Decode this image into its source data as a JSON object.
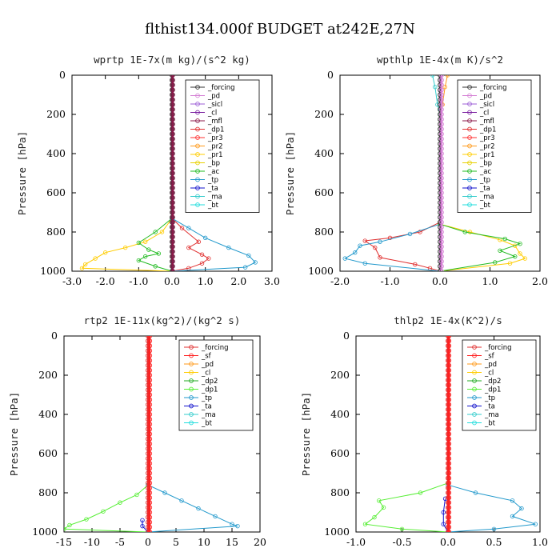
{
  "title": "flthist134.000f  BUDGET at242E,27N",
  "colors": {
    "forcing": "#333333",
    "pd": "#d580d5",
    "sicl": "#9c5ed6",
    "cl": "#7a1fa0",
    "mfl": "#8b1a4a",
    "dp1": "#e03030",
    "pr3": "#ff3030",
    "pr2": "#ff9a1a",
    "pr1": "#ffcc00",
    "bp": "#e8d000",
    "ac": "#22bb22",
    "tp": "#2299cc",
    "ta": "#1111cc",
    "ma": "#33cccc",
    "bt": "#22dddd",
    "sf": "#ff2020",
    "dp2": "#22aa22",
    "dp1g": "#55ee33"
  },
  "chart_data": [
    {
      "type": "line",
      "title": "wprtp  1E-7x(m kg)/(s^2 kg)",
      "ylabel": "Pressure [hPa]",
      "xlim": [
        -3.0,
        3.0
      ],
      "ylim": [
        1000,
        0
      ],
      "xticks": [
        "-3.0",
        "-2.0",
        "-1.0",
        "0.0",
        "1.0",
        "2.0",
        "3.0"
      ],
      "xtick_values": [
        -3,
        -2,
        -1,
        0,
        1,
        2,
        3
      ],
      "yticks": [
        "0",
        "200",
        "400",
        "600",
        "800",
        "1000"
      ],
      "ytick_values": [
        0,
        200,
        400,
        600,
        800,
        1000
      ],
      "legend": [
        "_forcing",
        "_pd",
        "_sicl",
        "_cl",
        "_mfl",
        "_dp1",
        "_pr3",
        "_pr2",
        "_pr1",
        "_bp",
        "_ac",
        "_tp",
        "_ta",
        "_ma",
        "_bt"
      ],
      "legend_colors": [
        "forcing",
        "pd",
        "sicl",
        "cl",
        "mfl",
        "dp1",
        "pr3",
        "pr2",
        "pr1",
        "bp",
        "ac",
        "tp",
        "ta",
        "ma",
        "bt"
      ],
      "series": [
        {
          "color": "pr1",
          "points": [
            [
              0,
              730
            ],
            [
              -0.3,
              800
            ],
            [
              -0.8,
              850
            ],
            [
              -1.4,
              880
            ],
            [
              -2.0,
              905
            ],
            [
              -2.3,
              935
            ],
            [
              -2.6,
              965
            ],
            [
              -2.7,
              985
            ],
            [
              0,
              1000
            ]
          ]
        },
        {
          "color": "ac",
          "points": [
            [
              0,
              730
            ],
            [
              -0.5,
              800
            ],
            [
              -1.0,
              855
            ],
            [
              -0.7,
              890
            ],
            [
              -0.4,
              910
            ],
            [
              -0.8,
              925
            ],
            [
              -1.0,
              945
            ],
            [
              -0.5,
              975
            ],
            [
              0,
              1000
            ]
          ]
        },
        {
          "color": "dp1",
          "points": [
            [
              0,
              730
            ],
            [
              0.3,
              780
            ],
            [
              0.8,
              850
            ],
            [
              0.5,
              880
            ],
            [
              0.9,
              915
            ],
            [
              1.1,
              935
            ],
            [
              0.9,
              960
            ],
            [
              0.5,
              985
            ],
            [
              0,
              1000
            ]
          ]
        },
        {
          "color": "tp",
          "points": [
            [
              0,
              730
            ],
            [
              0.5,
              780
            ],
            [
              1.0,
              830
            ],
            [
              1.7,
              880
            ],
            [
              2.3,
              920
            ],
            [
              2.5,
              955
            ],
            [
              2.2,
              980
            ],
            [
              0,
              1000
            ]
          ]
        },
        {
          "color": "forcing",
          "points": [
            [
              0,
              0
            ],
            [
              0,
              1000
            ]
          ]
        },
        {
          "color": "mfl",
          "points": [
            [
              0.02,
              0
            ],
            [
              0.02,
              1000
            ]
          ]
        }
      ]
    },
    {
      "type": "line",
      "title": "wpthlp  1E-4x(m K)/s^2",
      "ylabel": "Pressure [hPa]",
      "xlim": [
        -2.0,
        2.0
      ],
      "ylim": [
        1000,
        0
      ],
      "xticks": [
        "-2.0",
        "-1.0",
        "0.0",
        "1.0",
        "2.0"
      ],
      "xtick_values": [
        -2,
        -1,
        0,
        1,
        2
      ],
      "yticks": [
        "0",
        "200",
        "400",
        "600",
        "800",
        "1000"
      ],
      "ytick_values": [
        0,
        200,
        400,
        600,
        800,
        1000
      ],
      "legend": [
        "_forcing",
        "_pd",
        "_sicl",
        "_cl",
        "_mfl",
        "_dp1",
        "_pr3",
        "_pr2",
        "_pr1",
        "_bp",
        "_ac",
        "_tp",
        "_ta",
        "_ma",
        "_bt"
      ],
      "legend_colors": [
        "forcing",
        "pd",
        "sicl",
        "cl",
        "mfl",
        "dp1",
        "pr3",
        "pr2",
        "pr1",
        "bp",
        "ac",
        "tp",
        "ta",
        "ma",
        "bt"
      ],
      "series": [
        {
          "color": "dp1",
          "points": [
            [
              0,
              750
            ],
            [
              -0.4,
              800
            ],
            [
              -1.0,
              830
            ],
            [
              -1.5,
              845
            ],
            [
              -1.3,
              880
            ],
            [
              -1.2,
              930
            ],
            [
              -0.5,
              965
            ],
            [
              -0.2,
              985
            ],
            [
              0,
              1000
            ]
          ]
        },
        {
          "color": "tp",
          "points": [
            [
              0,
              760
            ],
            [
              -0.6,
              810
            ],
            [
              -1.2,
              850
            ],
            [
              -1.6,
              870
            ],
            [
              -1.7,
              905
            ],
            [
              -1.9,
              935
            ],
            [
              -1.5,
              960
            ],
            [
              0,
              1000
            ]
          ]
        },
        {
          "color": "pr1",
          "points": [
            [
              0,
              760
            ],
            [
              0.6,
              800
            ],
            [
              1.2,
              840
            ],
            [
              1.5,
              870
            ],
            [
              1.6,
              910
            ],
            [
              1.7,
              935
            ],
            [
              1.4,
              960
            ],
            [
              0,
              1000
            ]
          ]
        },
        {
          "color": "ac",
          "points": [
            [
              0,
              760
            ],
            [
              0.5,
              800
            ],
            [
              1.3,
              835
            ],
            [
              1.6,
              860
            ],
            [
              1.2,
              895
            ],
            [
              1.5,
              925
            ],
            [
              1.1,
              955
            ],
            [
              0,
              1000
            ]
          ]
        },
        {
          "color": "pr2",
          "points": [
            [
              0.15,
              0
            ],
            [
              0.1,
              60
            ],
            [
              0.05,
              150
            ],
            [
              0,
              200
            ]
          ]
        },
        {
          "color": "ma",
          "points": [
            [
              -0.15,
              0
            ],
            [
              -0.1,
              60
            ],
            [
              -0.05,
              150
            ],
            [
              0,
              200
            ]
          ]
        },
        {
          "color": "forcing",
          "points": [
            [
              0,
              0
            ],
            [
              0,
              1000
            ]
          ]
        },
        {
          "color": "pd",
          "points": [
            [
              0.03,
              0
            ],
            [
              0.03,
              1000
            ]
          ]
        }
      ]
    },
    {
      "type": "line",
      "title": "rtp2  1E-11x(kg^2)/(kg^2 s)",
      "ylabel": "Pressure [hPa]",
      "xlim": [
        -15,
        20
      ],
      "ylim": [
        1000,
        0
      ],
      "xticks": [
        "-15",
        "-10",
        "-5",
        "0",
        "5",
        "10",
        "15",
        "20"
      ],
      "xtick_values": [
        -15,
        -10,
        -5,
        0,
        5,
        10,
        15,
        20
      ],
      "yticks": [
        "0",
        "200",
        "400",
        "600",
        "800",
        "1000"
      ],
      "ytick_values": [
        0,
        200,
        400,
        600,
        800,
        1000
      ],
      "legend": [
        "_forcing",
        "_sf",
        "_pd",
        "_cl",
        "_dp2",
        "_dp1",
        "_tp",
        "_ta",
        "_ma",
        "_bt"
      ],
      "legend_colors": [
        "dp1",
        "sf",
        "pr2",
        "pr1",
        "dp2",
        "dp1g",
        "tp",
        "ta",
        "ma",
        "bt"
      ],
      "series": [
        {
          "color": "dp1g",
          "points": [
            [
              0,
              760
            ],
            [
              -2,
              810
            ],
            [
              -5,
              850
            ],
            [
              -8,
              895
            ],
            [
              -11,
              935
            ],
            [
              -14,
              965
            ],
            [
              -15,
              985
            ],
            [
              0,
              1000
            ]
          ]
        },
        {
          "color": "tp",
          "points": [
            [
              0,
              760
            ],
            [
              3,
              800
            ],
            [
              6,
              840
            ],
            [
              9,
              880
            ],
            [
              12,
              920
            ],
            [
              15,
              960
            ],
            [
              16,
              970
            ],
            [
              0,
              1000
            ]
          ]
        },
        {
          "color": "ta",
          "points": [
            [
              -1,
              940
            ],
            [
              -1,
              970
            ],
            [
              0,
              1000
            ]
          ]
        },
        {
          "color": "dp1",
          "points": [
            [
              0,
              0
            ],
            [
              0,
              1000
            ]
          ]
        },
        {
          "color": "sf",
          "points": [
            [
              0.3,
              0
            ],
            [
              0.3,
              1000
            ]
          ]
        }
      ]
    },
    {
      "type": "line",
      "title": "thlp2  1E-4x(K^2)/s",
      "ylabel": "Pressure [hPa]",
      "xlim": [
        -1.0,
        1.0
      ],
      "ylim": [
        1000,
        0
      ],
      "xticks": [
        "-1.0",
        "-0.5",
        "0.0",
        "0.5",
        "1.0"
      ],
      "xtick_values": [
        -1,
        -0.5,
        0,
        0.5,
        1
      ],
      "yticks": [
        "0",
        "200",
        "400",
        "600",
        "800",
        "1000"
      ],
      "ytick_values": [
        0,
        200,
        400,
        600,
        800,
        1000
      ],
      "legend": [
        "_forcing",
        "_sf",
        "_pd",
        "_cl",
        "_dp2",
        "_dp1",
        "_tp",
        "_ta",
        "_ma",
        "_bt"
      ],
      "legend_colors": [
        "dp1",
        "sf",
        "pr2",
        "pr1",
        "dp2",
        "dp1g",
        "tp",
        "ta",
        "ma",
        "bt"
      ],
      "series": [
        {
          "color": "dp1g",
          "points": [
            [
              0,
              750
            ],
            [
              -0.3,
              800
            ],
            [
              -0.75,
              840
            ],
            [
              -0.7,
              875
            ],
            [
              -0.8,
              925
            ],
            [
              -0.9,
              960
            ],
            [
              -0.5,
              985
            ],
            [
              0,
              1000
            ]
          ]
        },
        {
          "color": "tp",
          "points": [
            [
              0,
              760
            ],
            [
              0.3,
              800
            ],
            [
              0.7,
              840
            ],
            [
              0.8,
              880
            ],
            [
              0.7,
              920
            ],
            [
              0.95,
              960
            ],
            [
              0.5,
              985
            ],
            [
              0,
              1000
            ]
          ]
        },
        {
          "color": "ta",
          "points": [
            [
              -0.03,
              830
            ],
            [
              -0.05,
              900
            ],
            [
              -0.05,
              960
            ],
            [
              0,
              1000
            ]
          ]
        },
        {
          "color": "dp1",
          "points": [
            [
              0,
              0
            ],
            [
              0,
              1000
            ]
          ]
        },
        {
          "color": "sf",
          "points": [
            [
              0.01,
              0
            ],
            [
              0.01,
              1000
            ]
          ]
        }
      ]
    }
  ]
}
